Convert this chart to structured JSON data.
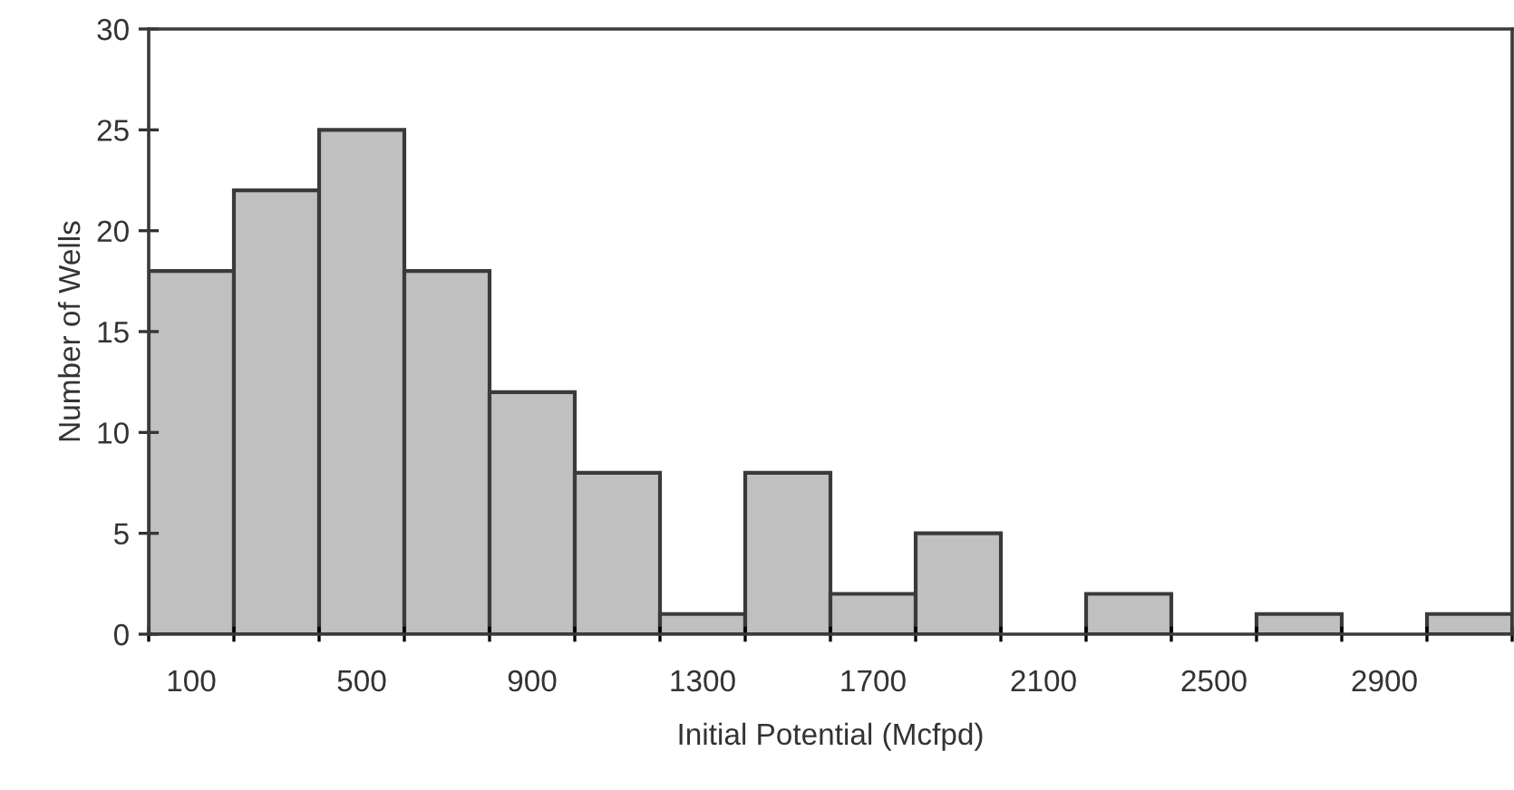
{
  "chart_data": {
    "type": "histogram",
    "xlabel": "Initial Potential (Mcfpd)",
    "ylabel": "Number of Wells",
    "bins": [
      0,
      200,
      400,
      600,
      800,
      1000,
      1200,
      1400,
      1600,
      1800,
      2000,
      2200,
      2400,
      2600,
      2800,
      3000,
      3200
    ],
    "values": [
      18,
      22,
      25,
      18,
      12,
      8,
      1,
      8,
      2,
      5,
      0,
      2,
      0,
      1,
      0,
      1
    ],
    "color": "#c0c0c0",
    "xlim": [
      0,
      3200
    ],
    "xticks": [
      {
        "value": 0,
        "label": null
      },
      {
        "value": 100,
        "label": "100"
      },
      {
        "value": 200,
        "label": null
      },
      {
        "value": 400,
        "label": null
      },
      {
        "value": 500,
        "label": "500"
      },
      {
        "value": 600,
        "label": null
      },
      {
        "value": 800,
        "label": null
      },
      {
        "value": 900,
        "label": "900"
      },
      {
        "value": 1000,
        "label": null
      },
      {
        "value": 1200,
        "label": null
      },
      {
        "value": 1300,
        "label": "1300"
      },
      {
        "value": 1400,
        "label": null
      },
      {
        "value": 1600,
        "label": null
      },
      {
        "value": 1700,
        "label": "1700"
      },
      {
        "value": 1800,
        "label": null
      },
      {
        "value": 2000,
        "label": null
      },
      {
        "value": 2100,
        "label": "2100"
      },
      {
        "value": 2200,
        "label": null
      },
      {
        "value": 2400,
        "label": null
      },
      {
        "value": 2500,
        "label": "2500"
      },
      {
        "value": 2600,
        "label": null
      },
      {
        "value": 2800,
        "label": null
      },
      {
        "value": 2900,
        "label": "2900"
      },
      {
        "value": 3000,
        "label": null
      },
      {
        "value": 3200,
        "label": null
      }
    ],
    "ylim": [
      0,
      30
    ],
    "yticks": [
      0,
      5,
      10,
      15,
      20,
      25,
      30
    ],
    "grid": false
  }
}
